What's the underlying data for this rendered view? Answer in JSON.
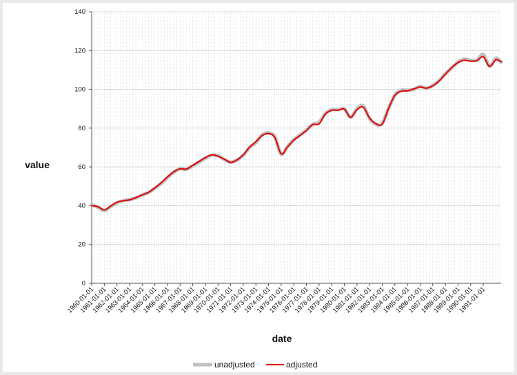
{
  "chart_data": {
    "type": "line",
    "title": "",
    "xlabel": "date",
    "ylabel": "value",
    "ylim": [
      0,
      140
    ],
    "yticks": [
      0,
      20,
      40,
      60,
      80,
      100,
      120,
      140
    ],
    "xlim": [
      "1960-01-01",
      "1992-06-01"
    ],
    "xticks": [
      "1960-01-01",
      "1961-01-01",
      "1962-01-01",
      "1963-01-01",
      "1964-01-01",
      "1965-01-01",
      "1966-01-01",
      "1967-01-01",
      "1968-01-01",
      "1969-01-01",
      "1970-01-01",
      "1971-01-01",
      "1972-01-01",
      "1973-01-01",
      "1974-01-01",
      "1975-01-01",
      "1976-01-01",
      "1977-01-01",
      "1978-01-01",
      "1979-01-01",
      "1980-01-01",
      "1981-01-01",
      "1982-01-01",
      "1983-01-01",
      "1984-01-01",
      "1985-01-01",
      "1986-01-01",
      "1987-01-01",
      "1988-01-01",
      "1989-01-01",
      "1990-01-01",
      "1991-01-01"
    ],
    "grid": true,
    "legend_position": "bottom",
    "series": [
      {
        "name": "unadjusted",
        "color": "#c0c0c0",
        "x": [
          "1960-01-01",
          "1960-07-01",
          "1961-01-01",
          "1961-07-01",
          "1962-01-01",
          "1962-07-01",
          "1963-01-01",
          "1963-07-01",
          "1964-01-01",
          "1964-07-01",
          "1965-01-01",
          "1965-07-01",
          "1966-01-01",
          "1966-07-01",
          "1967-01-01",
          "1967-07-01",
          "1968-01-01",
          "1968-07-01",
          "1969-01-01",
          "1969-07-01",
          "1970-01-01",
          "1970-07-01",
          "1971-01-01",
          "1971-07-01",
          "1972-01-01",
          "1972-07-01",
          "1973-01-01",
          "1973-07-01",
          "1974-01-01",
          "1974-07-01",
          "1975-01-01",
          "1975-07-01",
          "1976-01-01",
          "1976-07-01",
          "1977-01-01",
          "1977-07-01",
          "1978-01-01",
          "1978-07-01",
          "1979-01-01",
          "1979-07-01",
          "1980-01-01",
          "1980-07-01",
          "1981-01-01",
          "1981-07-01",
          "1982-01-01",
          "1982-07-01",
          "1983-01-01",
          "1983-07-01",
          "1984-01-01",
          "1984-07-01",
          "1985-01-01",
          "1985-07-01",
          "1986-01-01",
          "1986-07-01",
          "1987-01-01",
          "1987-07-01",
          "1988-01-01",
          "1988-07-01",
          "1989-01-01",
          "1989-07-01",
          "1990-01-01",
          "1990-07-01",
          "1991-01-01",
          "1991-07-01",
          "1992-01-01",
          "1992-06-01"
        ],
        "values": [
          40.5,
          39.2,
          37.5,
          39.5,
          41.5,
          42.5,
          43.2,
          44.0,
          45.5,
          46.8,
          49.0,
          51.5,
          54.5,
          57.2,
          59.2,
          58.8,
          60.5,
          62.5,
          64.5,
          66.0,
          65.8,
          63.8,
          62.5,
          63.5,
          66.0,
          70.0,
          72.5,
          76.5,
          77.5,
          75.5,
          66.5,
          70.5,
          74.0,
          76.5,
          79.0,
          82.0,
          83.0,
          87.5,
          89.5,
          89.5,
          90.0,
          85.5,
          90.0,
          91.5,
          85.0,
          82.0,
          82.5,
          90.0,
          97.0,
          99.5,
          99.5,
          100.0,
          101.5,
          100.5,
          102.0,
          104.5,
          108.0,
          111.0,
          114.0,
          115.5,
          115.0,
          115.0,
          118.0,
          112.0,
          116.0,
          114.0
        ]
      },
      {
        "name": "adjusted",
        "color": "#e00000",
        "x": [
          "1960-01-01",
          "1960-07-01",
          "1961-01-01",
          "1961-07-01",
          "1962-01-01",
          "1962-07-01",
          "1963-01-01",
          "1963-07-01",
          "1964-01-01",
          "1964-07-01",
          "1965-01-01",
          "1965-07-01",
          "1966-01-01",
          "1966-07-01",
          "1967-01-01",
          "1967-07-01",
          "1968-01-01",
          "1968-07-01",
          "1969-01-01",
          "1969-07-01",
          "1970-01-01",
          "1970-07-01",
          "1971-01-01",
          "1971-07-01",
          "1972-01-01",
          "1972-07-01",
          "1973-01-01",
          "1973-07-01",
          "1974-01-01",
          "1974-07-01",
          "1975-01-01",
          "1975-07-01",
          "1976-01-01",
          "1976-07-01",
          "1977-01-01",
          "1977-07-01",
          "1978-01-01",
          "1978-07-01",
          "1979-01-01",
          "1979-07-01",
          "1980-01-01",
          "1980-07-01",
          "1981-01-01",
          "1981-07-01",
          "1982-01-01",
          "1982-07-01",
          "1983-01-01",
          "1983-07-01",
          "1984-01-01",
          "1984-07-01",
          "1985-01-01",
          "1985-07-01",
          "1986-01-01",
          "1986-07-01",
          "1987-01-01",
          "1987-07-01",
          "1988-01-01",
          "1988-07-01",
          "1989-01-01",
          "1989-07-01",
          "1990-01-01",
          "1990-07-01",
          "1991-01-01",
          "1991-07-01",
          "1992-01-01",
          "1992-06-01"
        ],
        "values": [
          40.0,
          39.5,
          37.8,
          39.8,
          41.8,
          42.6,
          43.0,
          44.2,
          45.6,
          46.9,
          49.2,
          51.8,
          54.8,
          57.5,
          59.0,
          58.9,
          60.8,
          62.8,
          64.8,
          66.2,
          65.5,
          64.0,
          62.3,
          63.6,
          66.2,
          70.2,
          73.0,
          76.2,
          77.2,
          75.2,
          66.8,
          70.2,
          73.8,
          76.2,
          78.8,
          81.8,
          82.2,
          87.2,
          89.2,
          89.2,
          89.8,
          85.6,
          89.5,
          90.8,
          85.2,
          82.3,
          82.0,
          90.0,
          96.8,
          99.0,
          99.2,
          100.2,
          101.2,
          100.6,
          101.8,
          104.2,
          107.8,
          111.2,
          113.8,
          115.0,
          114.5,
          114.8,
          116.8,
          111.8,
          115.2,
          114.2
        ]
      }
    ]
  }
}
